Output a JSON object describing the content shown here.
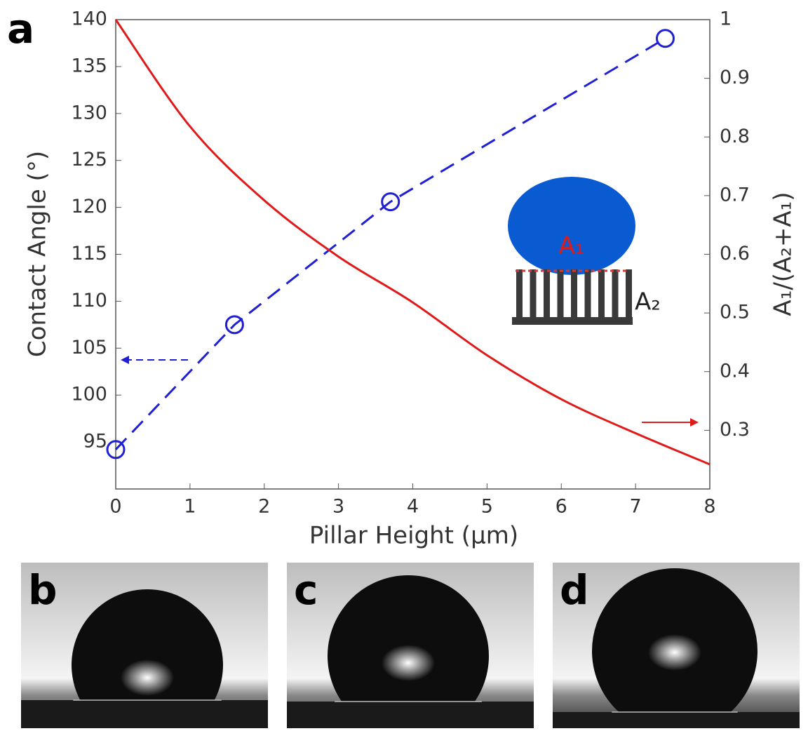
{
  "chart_data": {
    "type": "line",
    "panel_label": "a",
    "xlabel": "Pillar Height (μm)",
    "ylabel": "Contact Angle (°)",
    "y2label": "A₁/(A₂+A₁)",
    "xlim": [
      0,
      8
    ],
    "xticks": [
      0,
      1,
      2,
      3,
      4,
      5,
      6,
      7,
      8
    ],
    "ylim": [
      90,
      140
    ],
    "yticks": [
      95,
      100,
      105,
      110,
      115,
      120,
      125,
      130,
      135,
      140
    ],
    "y2lim": [
      0.2,
      1
    ],
    "y2ticks": [
      0.3,
      0.4,
      0.5,
      0.6,
      0.7,
      0.8,
      0.9,
      1
    ],
    "series": [
      {
        "color": "#1f1fd6",
        "axis": "y",
        "x": [
          0,
          1.6,
          3.7,
          7.4
        ],
        "values": [
          94.2,
          107.5,
          120.6,
          138
        ]
      },
      {
        "color": "#e01a1a",
        "axis": "y2",
        "x": [
          0,
          1,
          2,
          3,
          4,
          5,
          6,
          7,
          8
        ],
        "values": [
          1,
          0.818,
          0.692,
          0.596,
          0.518,
          0.428,
          0.353,
          0.295,
          0.242
        ]
      }
    ],
    "annotations": [
      "A₁",
      "A₂"
    ]
  },
  "panels": [
    "b",
    "c",
    "d"
  ]
}
